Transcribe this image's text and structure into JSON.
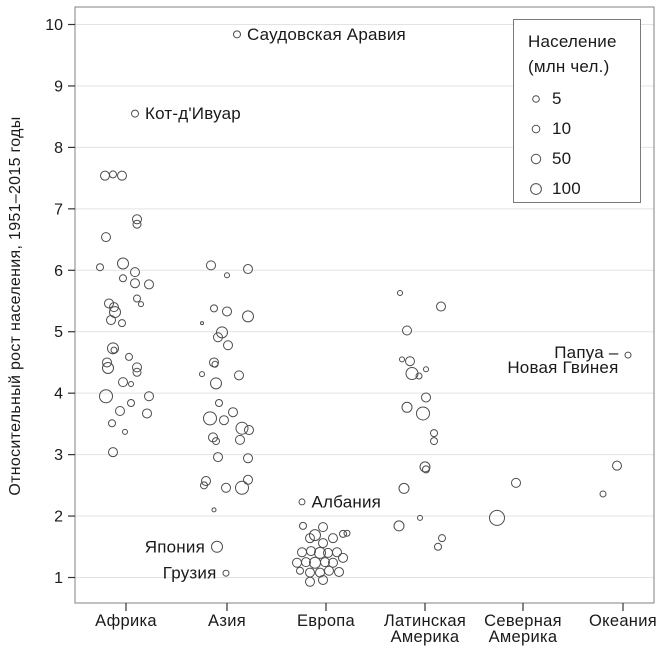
{
  "colors": {
    "background": "#ffffff",
    "point_stroke": "#4d4d4d",
    "grid_line": "#e3e3e3",
    "plot_border": "#808080",
    "tick_mark": "#333333",
    "text": "#1a1a1a",
    "legend_border": "#7a7a7a"
  },
  "chart_data": {
    "type": "scatter",
    "title": "",
    "xlabel": "",
    "ylabel": "Относительный рост населения, 1951–2015 годы",
    "ylim": [
      0.585,
      10.285
    ],
    "yticks": [
      "1",
      "2",
      "3",
      "4",
      "5",
      "6",
      "7",
      "8",
      "9",
      "10"
    ],
    "grid": "horizontal",
    "size_encoding": "population_millions",
    "categories": [
      "Африка",
      "Азия",
      "Европа",
      "Латинская Америка",
      "Северная Америка",
      "Океания"
    ],
    "category_tick_lines": [
      [
        "Африка"
      ],
      [
        "Азия"
      ],
      [
        "Европа"
      ],
      [
        "Латинская",
        "Америка"
      ],
      [
        "Северная",
        "Америка"
      ],
      [
        "Океания"
      ]
    ],
    "legend": {
      "position": "top-right",
      "title_lines": [
        "Население",
        "(млн чел.)"
      ],
      "items": [
        {
          "label": "5",
          "r": 3.3
        },
        {
          "label": "10",
          "r": 3.8
        },
        {
          "label": "50",
          "r": 4.7
        },
        {
          "label": "100",
          "r": 5.4
        }
      ]
    },
    "series": [
      {
        "name": "Африка",
        "points": [
          [
            -21,
            7.54,
            4.5
          ],
          [
            -13,
            7.56,
            3.5
          ],
          [
            -4,
            7.54,
            4.5
          ],
          [
            11,
            6.83,
            4.5
          ],
          [
            11,
            6.75,
            4.0
          ],
          [
            -20,
            6.54,
            4.5
          ],
          [
            -3,
            6.11,
            5.5
          ],
          [
            -26,
            6.05,
            3.5
          ],
          [
            9,
            5.97,
            4.5
          ],
          [
            -3,
            5.87,
            3.5
          ],
          [
            9,
            5.79,
            4.5
          ],
          [
            23,
            5.77,
            4.5
          ],
          [
            11,
            5.54,
            3.5
          ],
          [
            15,
            5.45,
            2.5
          ],
          [
            -17,
            5.46,
            4.5
          ],
          [
            -12,
            5.4,
            4.5
          ],
          [
            -11,
            5.32,
            5.5
          ],
          [
            -15,
            5.19,
            4.5
          ],
          [
            -4,
            5.14,
            3.5
          ],
          [
            -13,
            4.73,
            5.5
          ],
          [
            -12,
            4.7,
            3.0
          ],
          [
            3,
            4.59,
            3.5
          ],
          [
            -19,
            4.5,
            4.5
          ],
          [
            -18,
            4.41,
            5.5
          ],
          [
            11,
            4.42,
            4.5
          ],
          [
            11,
            4.34,
            4.0
          ],
          [
            -3,
            4.18,
            4.5
          ],
          [
            5,
            4.15,
            2.5
          ],
          [
            -20,
            3.95,
            6.5
          ],
          [
            23,
            3.95,
            4.5
          ],
          [
            5,
            3.84,
            3.5
          ],
          [
            -6,
            3.71,
            4.5
          ],
          [
            21,
            3.67,
            4.5
          ],
          [
            -14,
            3.51,
            3.5
          ],
          [
            -1,
            3.37,
            2.5
          ],
          [
            -13,
            3.04,
            4.5
          ],
          [
            9,
            8.55,
            3.5
          ]
        ]
      },
      {
        "name": "Азия",
        "points": [
          [
            -16,
            6.08,
            4.5
          ],
          [
            21,
            6.02,
            4.5
          ],
          [
            0,
            5.92,
            2.5
          ],
          [
            -13,
            5.38,
            3.5
          ],
          [
            0,
            5.33,
            4.5
          ],
          [
            21,
            5.25,
            5.5
          ],
          [
            -25,
            5.14,
            1.5
          ],
          [
            -5,
            4.99,
            5.5
          ],
          [
            -9,
            4.91,
            4.5
          ],
          [
            1,
            4.78,
            4.5
          ],
          [
            -13,
            4.5,
            4.5
          ],
          [
            -12,
            4.47,
            3.0
          ],
          [
            -25,
            4.31,
            2.5
          ],
          [
            12,
            4.29,
            4.5
          ],
          [
            -11,
            4.16,
            5.5
          ],
          [
            -8,
            3.84,
            3.5
          ],
          [
            6,
            3.69,
            4.5
          ],
          [
            -17,
            3.59,
            6.5
          ],
          [
            -3,
            3.56,
            4.5
          ],
          [
            15,
            3.43,
            6.0
          ],
          [
            22,
            3.4,
            4.5
          ],
          [
            -14,
            3.28,
            4.5
          ],
          [
            -11,
            3.22,
            3.5
          ],
          [
            13,
            3.24,
            4.5
          ],
          [
            -9,
            2.96,
            4.5
          ],
          [
            21,
            2.94,
            4.5
          ],
          [
            -21,
            2.57,
            4.5
          ],
          [
            -23,
            2.5,
            3.5
          ],
          [
            21,
            2.59,
            4.5
          ],
          [
            -1,
            2.46,
            4.5
          ],
          [
            15,
            2.46,
            6.5
          ],
          [
            -13,
            2.1,
            2.0
          ],
          [
            10,
            9.84,
            3.5
          ],
          [
            -10,
            1.5,
            5.5
          ],
          [
            -1,
            1.07,
            3.0
          ]
        ]
      },
      {
        "name": "Европа",
        "points": [
          [
            -24,
            2.23,
            3.0
          ],
          [
            -23,
            1.84,
            3.5
          ],
          [
            -3,
            1.82,
            4.5
          ],
          [
            -11,
            1.69,
            5.5
          ],
          [
            -16,
            1.64,
            4.5
          ],
          [
            7,
            1.64,
            4.5
          ],
          [
            17,
            1.71,
            3.5
          ],
          [
            21,
            1.72,
            3.0
          ],
          [
            -3,
            1.56,
            4.5
          ],
          [
            -24,
            1.41,
            4.5
          ],
          [
            -15,
            1.43,
            4.5
          ],
          [
            -6,
            1.4,
            5.5
          ],
          [
            2,
            1.4,
            4.5
          ],
          [
            11,
            1.41,
            4.5
          ],
          [
            17,
            1.32,
            4.5
          ],
          [
            -29,
            1.24,
            4.5
          ],
          [
            -20,
            1.25,
            4.5
          ],
          [
            -11,
            1.24,
            5.5
          ],
          [
            -1,
            1.25,
            4.5
          ],
          [
            7,
            1.24,
            4.5
          ],
          [
            -26,
            1.11,
            3.5
          ],
          [
            -16,
            1.08,
            4.5
          ],
          [
            -6,
            1.08,
            4.5
          ],
          [
            3,
            1.11,
            4.5
          ],
          [
            13,
            1.09,
            4.5
          ],
          [
            -16,
            0.93,
            4.5
          ],
          [
            -3,
            0.96,
            4.5
          ]
        ]
      },
      {
        "name": "Латинская Америка",
        "points": [
          [
            -25,
            5.63,
            2.5
          ],
          [
            16,
            5.41,
            4.5
          ],
          [
            -18,
            5.02,
            4.5
          ],
          [
            -23,
            4.55,
            2.5
          ],
          [
            -15,
            4.52,
            4.5
          ],
          [
            -13,
            4.32,
            6.0
          ],
          [
            -6,
            4.28,
            3.0
          ],
          [
            1,
            4.39,
            2.5
          ],
          [
            1,
            3.93,
            4.5
          ],
          [
            -18,
            3.77,
            5.0
          ],
          [
            -2,
            3.67,
            6.5
          ],
          [
            9,
            3.35,
            3.5
          ],
          [
            9,
            3.22,
            3.5
          ],
          [
            0,
            2.8,
            5.0
          ],
          [
            1,
            2.76,
            3.5
          ],
          [
            -21,
            2.45,
            5.0
          ],
          [
            -5,
            1.97,
            2.5
          ],
          [
            -26,
            1.84,
            5.0
          ],
          [
            17,
            1.64,
            3.5
          ],
          [
            13,
            1.5,
            3.5
          ]
        ]
      },
      {
        "name": "Северная Америка",
        "points": [
          [
            -7,
            2.54,
            4.5
          ],
          [
            -26,
            1.97,
            7.5
          ]
        ]
      },
      {
        "name": "Океания",
        "points": [
          [
            5,
            4.62,
            3.0
          ],
          [
            -6,
            2.82,
            4.5
          ],
          [
            -20,
            2.36,
            3.0
          ]
        ]
      }
    ],
    "annotations": [
      {
        "lines": [
          "Саудовская Аравия"
        ],
        "cat": 1,
        "dx": 10,
        "v": 9.84,
        "r": 3.5,
        "side": "right"
      },
      {
        "lines": [
          "Кот-д'Ивуар"
        ],
        "cat": 0,
        "dx": 9,
        "v": 8.55,
        "r": 3.5,
        "side": "right"
      },
      {
        "lines": [
          "Албания"
        ],
        "cat": 2,
        "dx": -24,
        "v": 2.23,
        "r": 3.0,
        "side": "right"
      },
      {
        "lines": [
          "Япония"
        ],
        "cat": 1,
        "dx": -10,
        "v": 1.5,
        "r": 5.5,
        "side": "left"
      },
      {
        "lines": [
          "Грузия"
        ],
        "cat": 1,
        "dx": -1,
        "v": 1.07,
        "r": 3.0,
        "side": "left"
      },
      {
        "lines": [
          "Папуа –",
          "Новая Гвинея"
        ],
        "cat": 5,
        "dx": 5,
        "v": 4.62,
        "r": 3.0,
        "side": "left"
      }
    ]
  }
}
